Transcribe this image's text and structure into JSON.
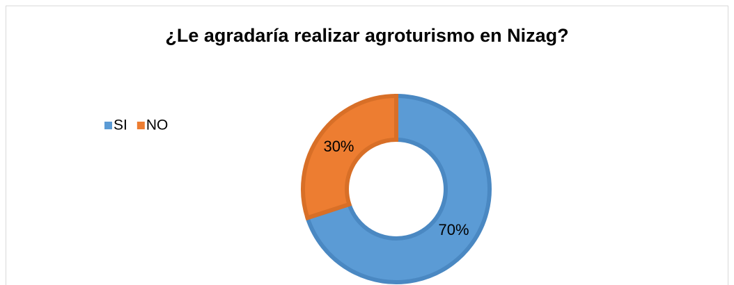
{
  "chart_data": {
    "type": "donut",
    "title": "¿Le agradaría realizar agroturismo en Nizag?",
    "categories": [
      "SI",
      "NO"
    ],
    "values": [
      70,
      30
    ],
    "value_labels": [
      "70%",
      "30%"
    ],
    "colors": [
      "#5b9bd5",
      "#ed7d31"
    ],
    "edge_colors": [
      "#4a88c2",
      "#d86f27"
    ],
    "legend": "left"
  }
}
